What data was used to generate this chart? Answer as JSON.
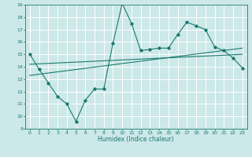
{
  "title": "",
  "xlabel": "Humidex (Indice chaleur)",
  "ylabel": "",
  "background_color": "#cce8e8",
  "grid_color": "#ffffff",
  "line_color": "#1a7a6e",
  "xlim": [
    -0.5,
    23.5
  ],
  "ylim": [
    9,
    19
  ],
  "xticks": [
    0,
    1,
    2,
    3,
    4,
    5,
    6,
    7,
    8,
    9,
    10,
    11,
    12,
    13,
    14,
    15,
    16,
    17,
    18,
    19,
    20,
    21,
    22,
    23
  ],
  "yticks": [
    9,
    10,
    11,
    12,
    13,
    14,
    15,
    16,
    17,
    18,
    19
  ],
  "line1_x": [
    0,
    1,
    2,
    3,
    4,
    5,
    6,
    7,
    8,
    9,
    10,
    11,
    12,
    13,
    14,
    15,
    16,
    17,
    18,
    19,
    20,
    21,
    22,
    23
  ],
  "line1_y": [
    15.0,
    13.8,
    12.7,
    11.6,
    11.0,
    9.6,
    11.3,
    12.2,
    12.2,
    15.9,
    19.1,
    17.5,
    15.3,
    15.4,
    15.5,
    15.5,
    16.6,
    17.6,
    17.3,
    17.0,
    15.6,
    15.3,
    14.7,
    13.9
  ],
  "line2_x": [
    0,
    23
  ],
  "line2_y": [
    13.3,
    15.5
  ],
  "line3_x": [
    0,
    23
  ],
  "line3_y": [
    14.2,
    15.0
  ]
}
